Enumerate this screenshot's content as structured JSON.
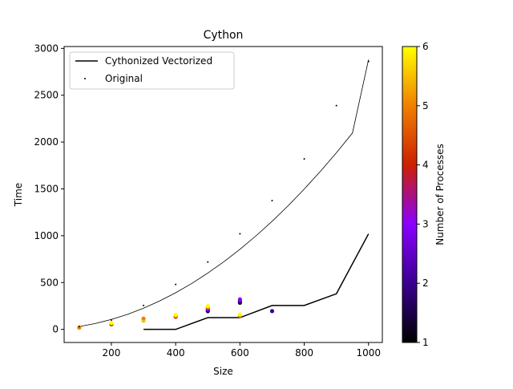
{
  "chart_data": {
    "type": "scatter",
    "title": "Cython",
    "xlabel": "Size",
    "ylabel": "Time",
    "xlim": [
      53,
      1043
    ],
    "ylim": [
      -140,
      3020
    ],
    "xticks": [
      200,
      400,
      600,
      800,
      1000
    ],
    "yticks": [
      0,
      500,
      1000,
      1500,
      2000,
      2500,
      3000
    ],
    "xtick_labels": [
      "200",
      "400",
      "600",
      "800",
      "1000"
    ],
    "ytick_labels": [
      "0",
      "500",
      "1000",
      "1500",
      "2000",
      "2500",
      "3000"
    ],
    "grid": false,
    "legend": {
      "placement": "top-left",
      "entries": [
        "Cythonized Vectorized",
        "Original"
      ]
    },
    "series": [
      {
        "name": "Cythonized Vectorized",
        "kind": "line",
        "color": "#000000",
        "x": [
          300,
          400,
          500,
          600,
          700,
          800,
          900,
          1000
        ],
        "y": [
          0,
          0,
          125,
          125,
          255,
          255,
          380,
          1020
        ]
      },
      {
        "name": "Original",
        "kind": "scatter",
        "color": "#000000",
        "x": [
          100,
          200,
          300,
          400,
          500,
          600,
          700,
          800,
          900,
          1000
        ],
        "y": [
          30,
          100,
          255,
          480,
          720,
          1020,
          1375,
          1820,
          2390,
          2860
        ]
      },
      {
        "kind": "curve",
        "color": "#000000",
        "x": [
          100,
          150,
          200,
          250,
          300,
          350,
          400,
          450,
          500,
          550,
          600,
          650,
          700,
          750,
          800,
          850,
          900,
          950,
          1000
        ],
        "y": [
          30,
          62,
          106,
          160,
          226,
          303,
          391,
          490,
          601,
          722,
          855,
          999,
          1154,
          1320,
          1498,
          1686,
          1885,
          2096,
          2880
        ]
      },
      {
        "kind": "scatter-colored",
        "color_label": "Number of Processes",
        "x": [
          100,
          100,
          200,
          200,
          200,
          300,
          300,
          300,
          400,
          400,
          400,
          500,
          500,
          500,
          500,
          500,
          600,
          600,
          600,
          600,
          600,
          700
        ],
        "y": [
          15,
          20,
          55,
          65,
          70,
          95,
          105,
          115,
          135,
          145,
          155,
          195,
          205,
          215,
          235,
          250,
          145,
          160,
          285,
          300,
          320,
          195
        ],
        "c": [
          6,
          5,
          4,
          5,
          6,
          5,
          6,
          5,
          4,
          5,
          6,
          1,
          2,
          3,
          5,
          6,
          5,
          6,
          1,
          2,
          3,
          2
        ]
      }
    ],
    "colorbar": {
      "label": "Number of Processes",
      "range": [
        1,
        6
      ],
      "ticks": [
        1,
        2,
        3,
        4,
        5,
        6
      ],
      "tick_labels": [
        "1",
        "2",
        "3",
        "4",
        "5",
        "6"
      ],
      "colormap": "gnuplot"
    }
  }
}
